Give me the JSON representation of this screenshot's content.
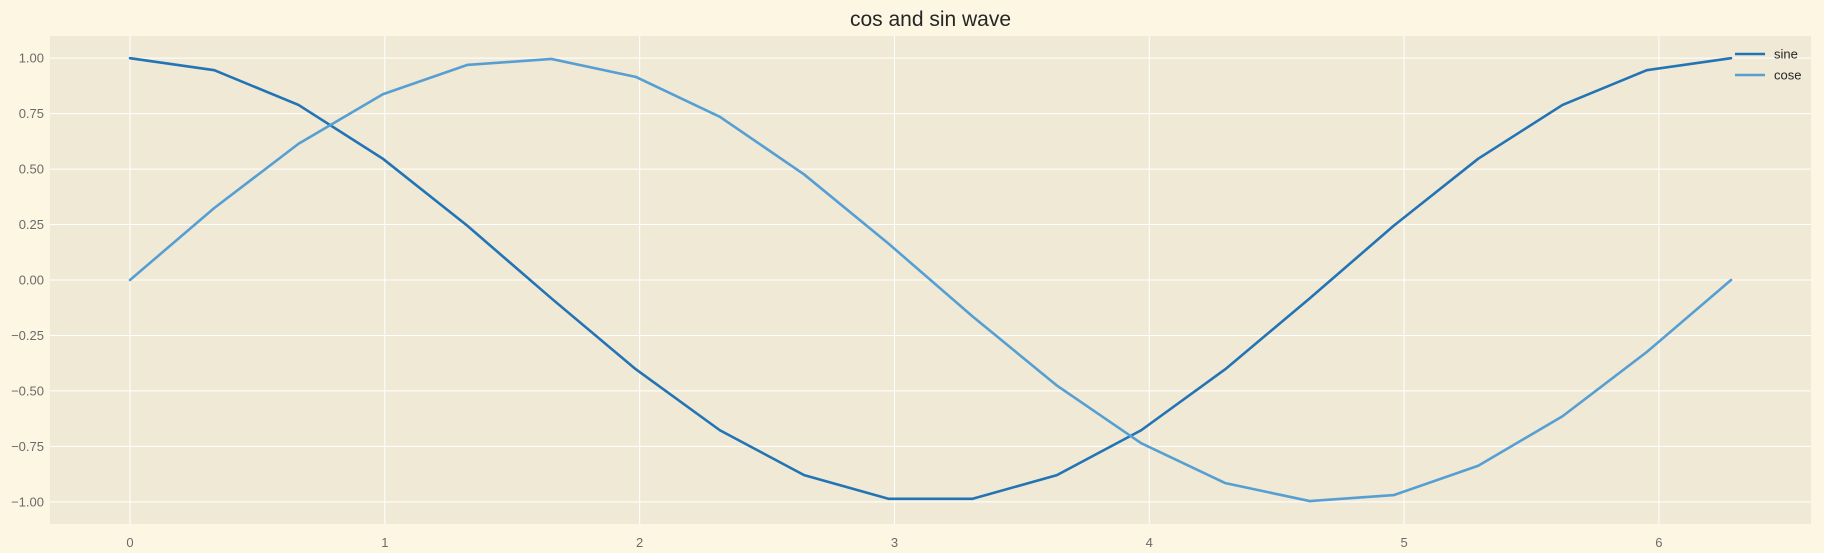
{
  "chart_data": {
    "type": "line",
    "title": "cos and sin wave",
    "xlabel": "",
    "ylabel": "",
    "xlim": [
      -0.314,
      6.597
    ],
    "ylim": [
      -1.1,
      1.1
    ],
    "grid": true,
    "legend_position": "top-right",
    "x_ticks": [
      0,
      1,
      2,
      3,
      4,
      5,
      6
    ],
    "x_tick_labels": [
      "0",
      "1",
      "2",
      "3",
      "4",
      "5",
      "6"
    ],
    "y_ticks": [
      1.0,
      0.75,
      0.5,
      0.25,
      0.0,
      -0.25,
      -0.5,
      -0.75,
      -1.0
    ],
    "y_tick_labels": [
      "1.00",
      "0.75",
      "0.50",
      "0.25",
      "0.00",
      "−0.25",
      "−0.50",
      "−0.75",
      "−1.00"
    ],
    "x": [
      0.0,
      0.3307,
      0.6614,
      0.9921,
      1.3228,
      1.6535,
      1.9842,
      2.3149,
      2.6456,
      2.9762,
      3.3069,
      3.6376,
      3.9683,
      4.299,
      4.6297,
      4.9604,
      5.2911,
      5.6218,
      5.9525,
      6.2832
    ],
    "series": [
      {
        "name": "sine",
        "color": "#2274b5",
        "values": [
          1.0,
          0.9458,
          0.7891,
          0.5469,
          0.2455,
          -0.0826,
          -0.4017,
          -0.6773,
          -0.8795,
          -0.9864,
          -0.9864,
          -0.8795,
          -0.6773,
          -0.4017,
          -0.0826,
          0.2455,
          0.5469,
          0.7891,
          0.9458,
          1.0
        ]
      },
      {
        "name": "cose",
        "color": "#569fd3",
        "values": [
          0.0,
          0.3247,
          0.6142,
          0.8372,
          0.9694,
          0.9966,
          0.9158,
          0.7357,
          0.4759,
          0.1646,
          -0.1646,
          -0.4759,
          -0.7357,
          -0.9158,
          -0.9966,
          -0.9694,
          -0.8372,
          -0.6142,
          -0.3247,
          0.0
        ]
      }
    ],
    "colors": {
      "figure_background": "#fdf6e3",
      "plot_background": "#f0e9d6",
      "grid": "#ffffff"
    }
  }
}
